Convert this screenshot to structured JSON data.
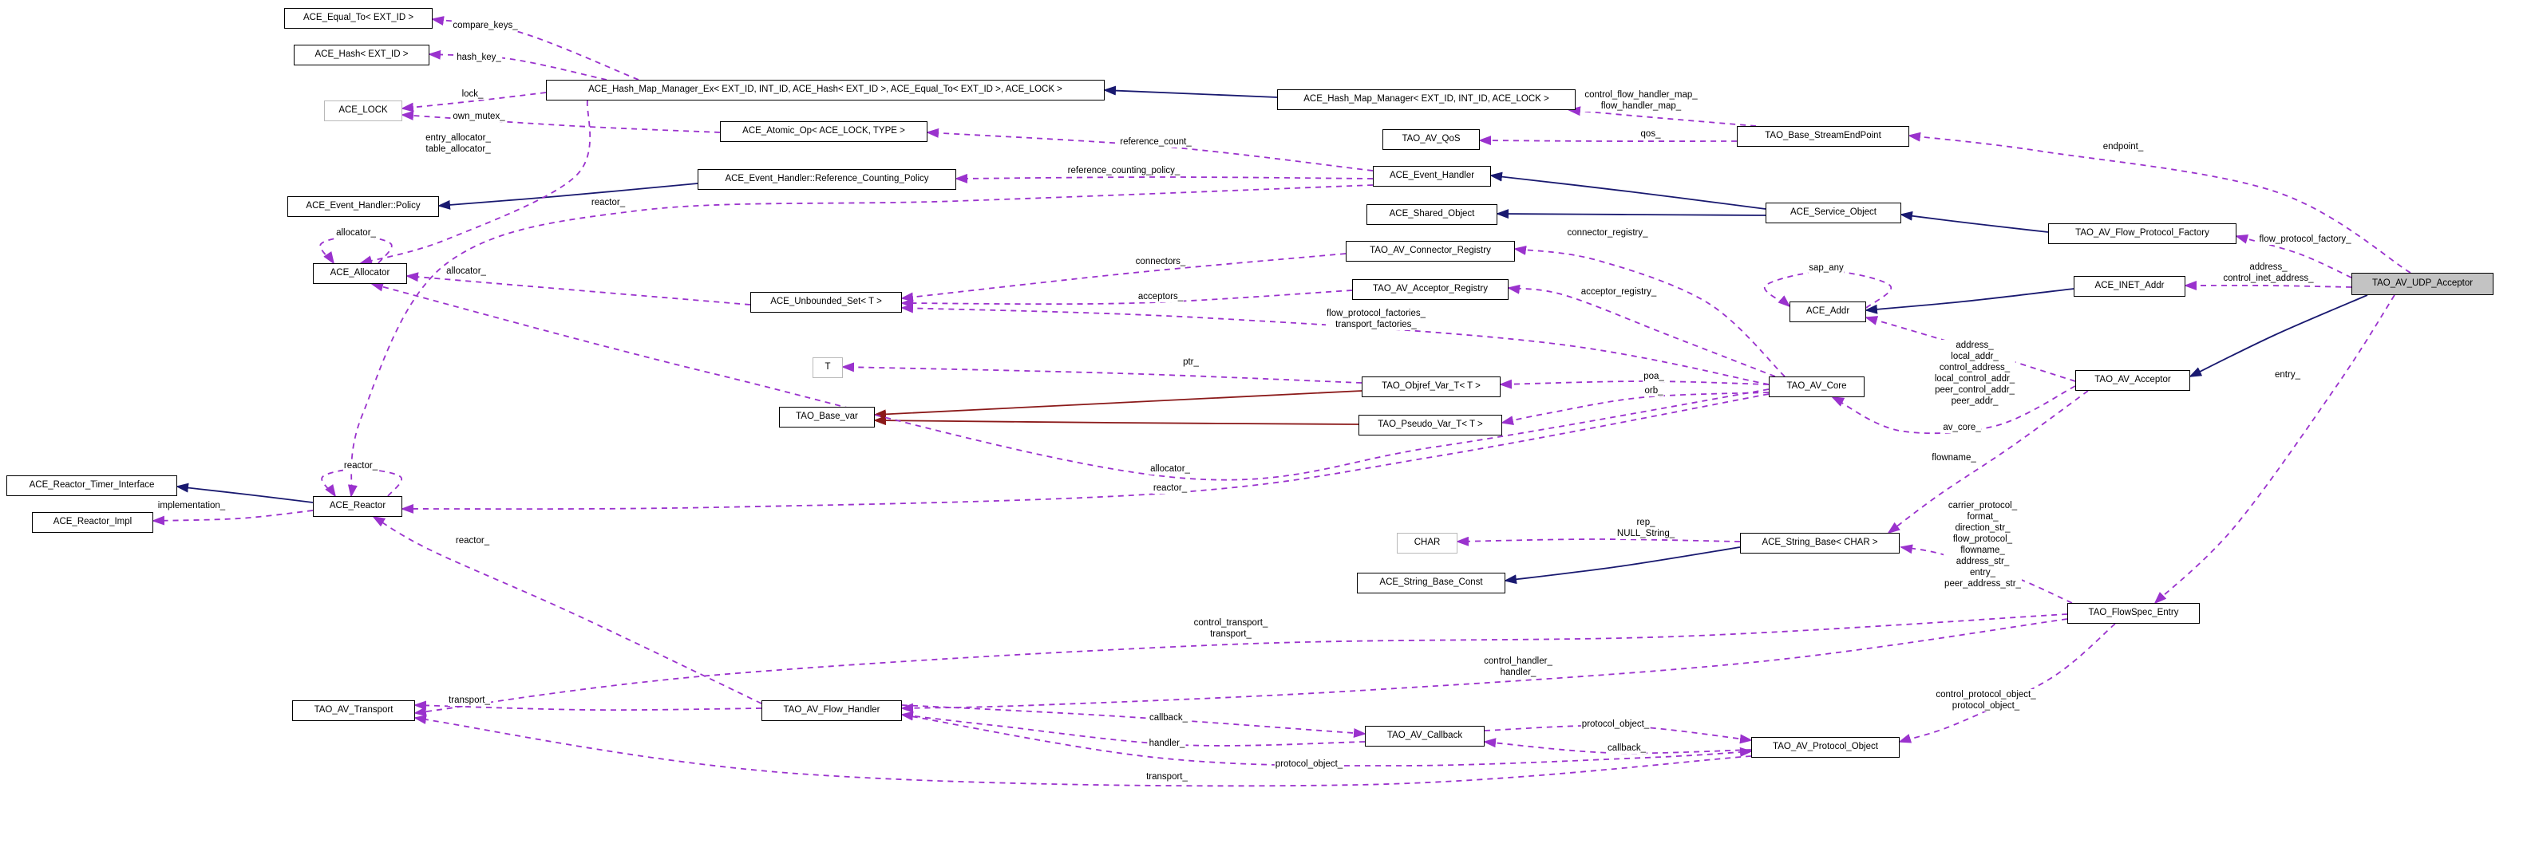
{
  "diagram": {
    "kind": "class-collaboration-graph",
    "highlighted_node": "TAO_AV_UDP_Acceptor",
    "colors": {
      "usage_edge": "#9a32cd",
      "inheritance_edge": "#191970",
      "private_inheritance_edge": "#8b1a1a",
      "highlight_fill": "#c3c3c3",
      "node_border": "#000000",
      "template_node_border": "#b9b9b9",
      "background": "#ffffff"
    },
    "nodes": [
      {
        "id": "equal_to",
        "label": "ACE_Equal_To< EXT_ID >",
        "kind": "class"
      },
      {
        "id": "hash",
        "label": "ACE_Hash< EXT_ID >",
        "kind": "class"
      },
      {
        "id": "lock",
        "label": "ACE_LOCK",
        "kind": "template"
      },
      {
        "id": "hmme",
        "label": "ACE_Hash_Map_Manager_Ex< EXT_ID, INT_ID, ACE_Hash< EXT_ID >, ACE_Equal_To< EXT_ID >, ACE_LOCK >",
        "kind": "class"
      },
      {
        "id": "atomic",
        "label": "ACE_Atomic_Op< ACE_LOCK, TYPE >",
        "kind": "class"
      },
      {
        "id": "hmm",
        "label": "ACE_Hash_Map_Manager< EXT_ID, INT_ID, ACE_LOCK >",
        "kind": "class"
      },
      {
        "id": "qos",
        "label": "TAO_AV_QoS",
        "kind": "class"
      },
      {
        "id": "sep",
        "label": "TAO_Base_StreamEndPoint",
        "kind": "class"
      },
      {
        "id": "ehpolicy",
        "label": "ACE_Event_Handler::Policy",
        "kind": "class"
      },
      {
        "id": "rcpolicy",
        "label": "ACE_Event_Handler::Reference_Counting_Policy",
        "kind": "class"
      },
      {
        "id": "eh",
        "label": "ACE_Event_Handler",
        "kind": "class"
      },
      {
        "id": "shared",
        "label": "ACE_Shared_Object",
        "kind": "class"
      },
      {
        "id": "svc",
        "label": "ACE_Service_Object",
        "kind": "class"
      },
      {
        "id": "fpf",
        "label": "TAO_AV_Flow_Protocol_Factory",
        "kind": "class"
      },
      {
        "id": "udp",
        "label": "TAO_AV_UDP_Acceptor",
        "kind": "highlight"
      },
      {
        "id": "connreg",
        "label": "TAO_AV_Connector_Registry",
        "kind": "class"
      },
      {
        "id": "acceptreg",
        "label": "TAO_AV_Acceptor_Registry",
        "kind": "class"
      },
      {
        "id": "addr",
        "label": "ACE_Addr",
        "kind": "class"
      },
      {
        "id": "inet",
        "label": "ACE_INET_Addr",
        "kind": "class"
      },
      {
        "id": "alloc",
        "label": "ACE_Allocator",
        "kind": "class"
      },
      {
        "id": "uset",
        "label": "ACE_Unbounded_Set< T >",
        "kind": "class"
      },
      {
        "id": "t",
        "label": "T",
        "kind": "template"
      },
      {
        "id": "objref",
        "label": "TAO_Objref_Var_T< T >",
        "kind": "class"
      },
      {
        "id": "basevar",
        "label": "TAO_Base_var",
        "kind": "class"
      },
      {
        "id": "pseudo",
        "label": "TAO_Pseudo_Var_T< T >",
        "kind": "class"
      },
      {
        "id": "core",
        "label": "TAO_AV_Core",
        "kind": "class"
      },
      {
        "id": "avacceptor",
        "label": "TAO_AV_Acceptor",
        "kind": "class"
      },
      {
        "id": "rti",
        "label": "ACE_Reactor_Timer_Interface",
        "kind": "class"
      },
      {
        "id": "rimpl",
        "label": "ACE_Reactor_Impl",
        "kind": "class"
      },
      {
        "id": "reactor",
        "label": "ACE_Reactor",
        "kind": "class"
      },
      {
        "id": "char",
        "label": "CHAR",
        "kind": "template"
      },
      {
        "id": "strbase",
        "label": "ACE_String_Base< CHAR >",
        "kind": "class"
      },
      {
        "id": "strconst",
        "label": "ACE_String_Base_Const",
        "kind": "class"
      },
      {
        "id": "flowspec",
        "label": "TAO_FlowSpec_Entry",
        "kind": "class"
      },
      {
        "id": "transport",
        "label": "TAO_AV_Transport",
        "kind": "class"
      },
      {
        "id": "flowhandler",
        "label": "TAO_AV_Flow_Handler",
        "kind": "class"
      },
      {
        "id": "callback",
        "label": "TAO_AV_Callback",
        "kind": "class"
      },
      {
        "id": "proto",
        "label": "TAO_AV_Protocol_Object",
        "kind": "class"
      }
    ],
    "edges": [
      {
        "id": "e1",
        "from": "hmm",
        "to": "hmme",
        "kind": "inherit"
      },
      {
        "id": "e2",
        "from": "rcpolicy",
        "to": "ehpolicy",
        "kind": "inherit"
      },
      {
        "id": "e3",
        "from": "svc",
        "to": "eh",
        "kind": "inherit"
      },
      {
        "id": "e4",
        "from": "svc",
        "to": "shared",
        "kind": "inherit"
      },
      {
        "id": "e5",
        "from": "fpf",
        "to": "svc",
        "kind": "inherit"
      },
      {
        "id": "e6",
        "from": "inet",
        "to": "addr",
        "kind": "inherit"
      },
      {
        "id": "e7",
        "from": "udp",
        "to": "avacceptor",
        "kind": "inherit"
      },
      {
        "id": "e8",
        "from": "reactor",
        "to": "rti",
        "kind": "inherit"
      },
      {
        "id": "e9",
        "from": "strbase",
        "to": "strconst",
        "kind": "inherit"
      },
      {
        "id": "e10",
        "from": "objref",
        "to": "basevar",
        "kind": "private"
      },
      {
        "id": "e11",
        "from": "pseudo",
        "to": "basevar",
        "kind": "private"
      },
      {
        "id": "d1",
        "from": "hmme",
        "to": "equal_to",
        "kind": "usage",
        "label": [
          "compare_keys_"
        ]
      },
      {
        "id": "d2",
        "from": "hmme",
        "to": "hash",
        "kind": "usage",
        "label": [
          "hash_key_"
        ]
      },
      {
        "id": "d3",
        "from": "hmme",
        "to": "lock",
        "kind": "usage",
        "label": [
          "lock_"
        ]
      },
      {
        "id": "d4",
        "from": "atomic",
        "to": "lock",
        "kind": "usage",
        "label": [
          "own_mutex_"
        ]
      },
      {
        "id": "d5",
        "from": "hmme",
        "to": "alloc",
        "kind": "usage",
        "label": [
          "entry_allocator_",
          "table_allocator_"
        ]
      },
      {
        "id": "d6",
        "from": "sep",
        "to": "hmm",
        "kind": "usage",
        "label": [
          "control_flow_handler_map_",
          "flow_handler_map_"
        ]
      },
      {
        "id": "d7",
        "from": "sep",
        "to": "qos",
        "kind": "usage",
        "label": [
          "qos_"
        ]
      },
      {
        "id": "d8",
        "from": "udp",
        "to": "sep",
        "kind": "usage",
        "label": [
          "endpoint_"
        ]
      },
      {
        "id": "d9",
        "from": "eh",
        "to": "rcpolicy",
        "kind": "usage",
        "label": [
          "reference_counting_policy_"
        ]
      },
      {
        "id": "d10",
        "from": "eh",
        "to": "atomic",
        "kind": "usage",
        "label": [
          "reference_count_"
        ]
      },
      {
        "id": "d11",
        "from": "eh",
        "to": "reactor",
        "kind": "usage",
        "label": [
          "reactor_"
        ]
      },
      {
        "id": "d12",
        "from": "core",
        "to": "alloc",
        "kind": "usage",
        "label": [
          "allocator_"
        ]
      },
      {
        "id": "d13",
        "from": "core",
        "to": "reactor",
        "kind": "usage",
        "label": [
          "reactor_"
        ]
      },
      {
        "id": "d14",
        "from": "udp",
        "to": "fpf",
        "kind": "usage",
        "label": [
          "flow_protocol_factory_"
        ]
      },
      {
        "id": "d15",
        "from": "udp",
        "to": "inet",
        "kind": "usage",
        "label": [
          "address_",
          "control_inet_address_"
        ]
      },
      {
        "id": "d16",
        "from": "udp",
        "to": "flowspec",
        "kind": "usage",
        "label": [
          "entry_"
        ]
      },
      {
        "id": "d17",
        "from": "core",
        "to": "connreg",
        "kind": "usage",
        "label": [
          "connector_registry_"
        ]
      },
      {
        "id": "d18",
        "from": "core",
        "to": "acceptreg",
        "kind": "usage",
        "label": [
          "acceptor_registry_"
        ]
      },
      {
        "id": "d19",
        "from": "connreg",
        "to": "uset",
        "kind": "usage",
        "label": [
          "connectors_"
        ]
      },
      {
        "id": "d20",
        "from": "acceptreg",
        "to": "uset",
        "kind": "usage",
        "label": [
          "acceptors_"
        ]
      },
      {
        "id": "d21",
        "from": "core",
        "to": "uset",
        "kind": "usage",
        "label": [
          "flow_protocol_factories_",
          "transport_factories_"
        ]
      },
      {
        "id": "d22",
        "from": "objref",
        "to": "t",
        "kind": "usage",
        "label": [
          "ptr_"
        ]
      },
      {
        "id": "d23",
        "from": "addr",
        "to": "addr",
        "kind": "usage",
        "label": [
          "sap_any"
        ]
      },
      {
        "id": "d24",
        "from": "avacceptor",
        "to": "addr",
        "kind": "usage",
        "label": [
          "address_",
          "local_addr_",
          "control_address_",
          "local_control_addr_",
          "peer_control_addr_",
          "peer_addr_"
        ]
      },
      {
        "id": "d25",
        "from": "avacceptor",
        "to": "core",
        "kind": "usage",
        "label": [
          "av_core_"
        ]
      },
      {
        "id": "d26",
        "from": "avacceptor",
        "to": "strbase",
        "kind": "usage",
        "label": [
          "flowname_"
        ]
      },
      {
        "id": "d27",
        "from": "reactor",
        "to": "reactor",
        "kind": "usage",
        "label": [
          "reactor_"
        ]
      },
      {
        "id": "d28",
        "from": "reactor",
        "to": "rimpl",
        "kind": "usage",
        "label": [
          "implementation_"
        ]
      },
      {
        "id": "d30",
        "from": "flowhandler",
        "to": "reactor",
        "kind": "usage",
        "label": [
          "reactor_"
        ]
      },
      {
        "id": "d31",
        "from": "strbase",
        "to": "char",
        "kind": "usage",
        "label": [
          "rep_",
          "NULL_String_"
        ]
      },
      {
        "id": "d32",
        "from": "flowspec",
        "to": "strbase",
        "kind": "usage",
        "label": [
          "carrier_protocol_",
          "format_",
          "direction_str_",
          "flow_protocol_",
          "flowname_",
          "address_str_",
          "entry_",
          "peer_address_str_"
        ]
      },
      {
        "id": "d33",
        "from": "flowspec",
        "to": "transport",
        "kind": "usage",
        "label": [
          "control_transport_",
          "transport_"
        ]
      },
      {
        "id": "d34",
        "from": "flowspec",
        "to": "flowhandler",
        "kind": "usage",
        "label": [
          "control_handler_",
          "handler_"
        ]
      },
      {
        "id": "d35",
        "from": "flowhandler",
        "to": "transport",
        "kind": "usage",
        "label": [
          "transport_"
        ]
      },
      {
        "id": "d36",
        "from": "flowhandler",
        "to": "callback",
        "kind": "usage",
        "label": [
          "callback_"
        ]
      },
      {
        "id": "d37",
        "from": "callback",
        "to": "flowhandler",
        "kind": "usage",
        "label": [
          "handler_"
        ]
      },
      {
        "id": "d38",
        "from": "callback",
        "to": "proto",
        "kind": "usage",
        "label": [
          "protocol_object_"
        ]
      },
      {
        "id": "d39",
        "from": "proto",
        "to": "callback",
        "kind": "usage",
        "label": [
          "callback_"
        ]
      },
      {
        "id": "d40",
        "from": "flowhandler",
        "to": "proto",
        "kind": "usage",
        "label": [
          "protocol_object_"
        ]
      },
      {
        "id": "d41",
        "from": "proto",
        "to": "transport",
        "kind": "usage",
        "label": [
          "transport_"
        ]
      },
      {
        "id": "d42",
        "from": "flowspec",
        "to": "proto",
        "kind": "usage",
        "label": [
          "control_protocol_object_",
          "protocol_object_"
        ]
      },
      {
        "id": "d43",
        "from": "uset",
        "to": "alloc",
        "kind": "usage",
        "label": [
          "allocator_"
        ]
      },
      {
        "id": "d44",
        "from": "alloc",
        "to": "alloc",
        "kind": "usage",
        "label": [
          "allocator_"
        ]
      },
      {
        "id": "d46",
        "from": "core",
        "to": "objref",
        "kind": "usage",
        "label": [
          "poa_"
        ]
      },
      {
        "id": "d47",
        "from": "core",
        "to": "pseudo",
        "kind": "usage",
        "label": [
          "orb_"
        ]
      }
    ]
  }
}
